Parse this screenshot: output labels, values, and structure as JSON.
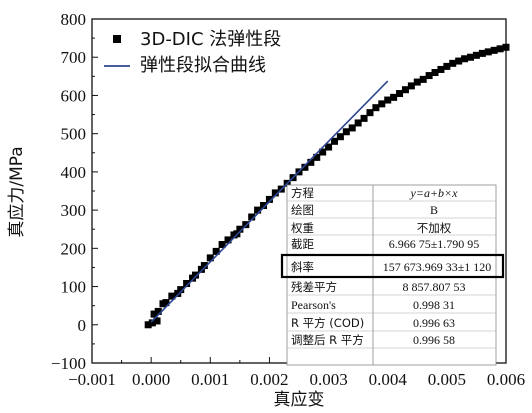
{
  "chart_data": {
    "type": "scatter",
    "xlabel": "真应变",
    "ylabel": "真应力/MPa",
    "xlim": [
      -0.001,
      0.006
    ],
    "ylim": [
      -100,
      800
    ],
    "x_ticks": [
      "−0.001",
      "0.000",
      "0.001",
      "0.002",
      "0.003",
      "0.004",
      "0.005",
      "0.006"
    ],
    "y_ticks": [
      "−100",
      "0",
      "100",
      "200",
      "300",
      "400",
      "500",
      "600",
      "700",
      "800"
    ],
    "grid": false,
    "legend": {
      "placement": "top-left",
      "entries": [
        {
          "label": "3D-DIC 法弹性段",
          "marker": "square",
          "color": "#000000"
        },
        {
          "label": "弹性段拟合曲线",
          "marker": "line",
          "color": "#2c4591"
        }
      ]
    },
    "series": [
      {
        "name": "3D-DIC 法弹性段",
        "kind": "scatter",
        "color": "#000000",
        "x": [
          -5e-05,
          2e-05,
          0.0001,
          5e-05,
          0.00012,
          0.0002,
          0.00025,
          0.00035,
          0.00045,
          0.0005,
          0.0006,
          0.0007,
          0.00075,
          0.00085,
          0.0009,
          0.001,
          0.0011,
          0.0012,
          0.0013,
          0.0014,
          0.00145,
          0.0015,
          0.0016,
          0.0017,
          0.0018,
          0.0019,
          0.002,
          0.0021,
          0.0022,
          0.0023,
          0.0024,
          0.0025,
          0.0026,
          0.0027,
          0.0028,
          0.0029,
          0.003,
          0.0031,
          0.0032,
          0.0033,
          0.0034,
          0.0035,
          0.0036,
          0.0037,
          0.0038,
          0.0039,
          0.004,
          0.0041,
          0.0042,
          0.0043,
          0.0044,
          0.0045,
          0.0046,
          0.0047,
          0.0048,
          0.0049,
          0.005,
          0.0051,
          0.0052,
          0.0053,
          0.0054,
          0.0055,
          0.0056,
          0.0057,
          0.0058,
          0.0059,
          0.006
        ],
        "y": [
          0,
          5,
          10,
          28,
          35,
          55,
          58,
          75,
          82,
          92,
          108,
          122,
          130,
          145,
          155,
          175,
          192,
          210,
          222,
          235,
          238,
          250,
          262,
          282,
          300,
          312,
          328,
          345,
          355,
          370,
          385,
          400,
          412,
          425,
          438,
          452,
          465,
          480,
          492,
          505,
          515,
          528,
          540,
          555,
          568,
          578,
          588,
          595,
          605,
          615,
          625,
          635,
          642,
          652,
          660,
          668,
          676,
          684,
          690,
          696,
          700,
          705,
          710,
          714,
          718,
          722,
          726
        ]
      },
      {
        "name": "弹性段拟合曲线",
        "kind": "line",
        "color": "#2c4591",
        "x": [
          0.0,
          0.004
        ],
        "y": [
          6.967,
          637.66
        ]
      }
    ],
    "fit_table": {
      "rows": [
        {
          "key": "方程",
          "value": "y=a+b×x",
          "italic": true
        },
        {
          "key": "绘图",
          "value": "B"
        },
        {
          "key": "权重",
          "value": "不加权"
        },
        {
          "key": "截距",
          "value": "6.966 75±1.790 95"
        },
        {
          "key": "斜率",
          "value": "157 673.969 33±1 120",
          "highlight": true
        },
        {
          "key": "残差平方",
          "value": "8 857.807 53"
        },
        {
          "key": "Pearson's",
          "value": "0.998 31"
        },
        {
          "key": "R 平方 (COD)",
          "value": "0.996 63"
        },
        {
          "key": "调整后 R 平方",
          "value": "0.996 58"
        }
      ]
    }
  }
}
